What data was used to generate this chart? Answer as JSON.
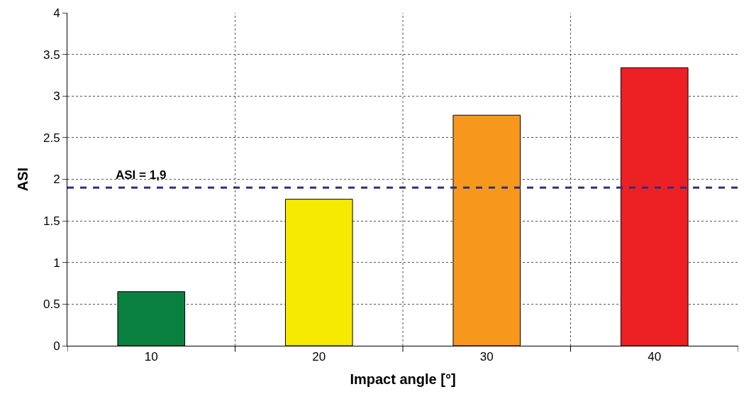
{
  "chart_data": {
    "type": "bar",
    "xlabel": "Impact angle [°]",
    "ylabel": "ASI",
    "categories": [
      "10",
      "20",
      "30",
      "40"
    ],
    "values": [
      0.65,
      1.76,
      2.77,
      3.34
    ],
    "colors": [
      "#0a8040",
      "#f5ea00",
      "#f7981d",
      "#ed2024"
    ],
    "ylim": [
      0,
      4
    ],
    "yticks": [
      0,
      0.5,
      1,
      1.5,
      2,
      2.5,
      3,
      3.5,
      4
    ],
    "grid": true,
    "ref_lines": [
      {
        "axis": "y",
        "value": 1.9,
        "label": "ASI = 1,9",
        "color": "#2e3080",
        "line_style": "dashed"
      }
    ]
  }
}
